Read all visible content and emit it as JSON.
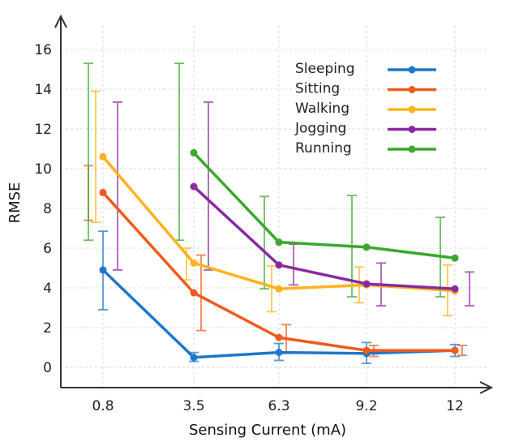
{
  "chart_data": {
    "type": "line",
    "xlabel": "Sensing Current (mA)",
    "ylabel": "RMSE",
    "categories": [
      "0.8",
      "3.5",
      "6.3",
      "9.2",
      "12"
    ],
    "ylim": [
      -1,
      17
    ],
    "yticks": [
      0,
      2,
      4,
      6,
      8,
      10,
      12,
      14,
      16
    ],
    "grid": true,
    "legend_position": "top-right",
    "series": [
      {
        "name": "Sleeping",
        "color": "#1f77c9",
        "values": [
          4.9,
          0.5,
          0.75,
          0.7,
          0.85
        ],
        "err_low": [
          2.9,
          0.3,
          0.35,
          0.2,
          0.55
        ],
        "err_high": [
          6.85,
          0.75,
          1.2,
          1.25,
          1.15
        ]
      },
      {
        "name": "Sitting",
        "color": "#f05a1a",
        "values": [
          8.8,
          3.75,
          1.5,
          0.85,
          0.85
        ],
        "err_low": [
          7.4,
          1.85,
          0.7,
          0.55,
          0.6
        ],
        "err_high": [
          10.15,
          5.65,
          2.15,
          1.1,
          1.1
        ]
      },
      {
        "name": "Walking",
        "color": "#ffb31a",
        "values": [
          10.6,
          5.25,
          3.95,
          4.15,
          3.85
        ],
        "err_low": [
          7.3,
          4.4,
          2.8,
          3.25,
          2.6
        ],
        "err_high": [
          13.9,
          6.0,
          5.1,
          5.05,
          5.15
        ]
      },
      {
        "name": "Jogging",
        "color": "#8a2a9e",
        "values": [
          9.1,
          9.1,
          5.15,
          4.2,
          3.95
        ],
        "err_low": [
          4.9,
          4.9,
          4.15,
          3.1,
          3.1
        ],
        "err_high": [
          13.35,
          13.35,
          6.2,
          5.25,
          4.8
        ]
      },
      {
        "name": "Running",
        "color": "#3aa82c",
        "values": [
          10.8,
          10.8,
          6.3,
          6.05,
          5.5
        ],
        "err_low": [
          6.4,
          6.4,
          3.95,
          3.55,
          3.55
        ],
        "err_high": [
          15.3,
          15.3,
          8.6,
          8.65,
          7.55
        ]
      }
    ]
  }
}
